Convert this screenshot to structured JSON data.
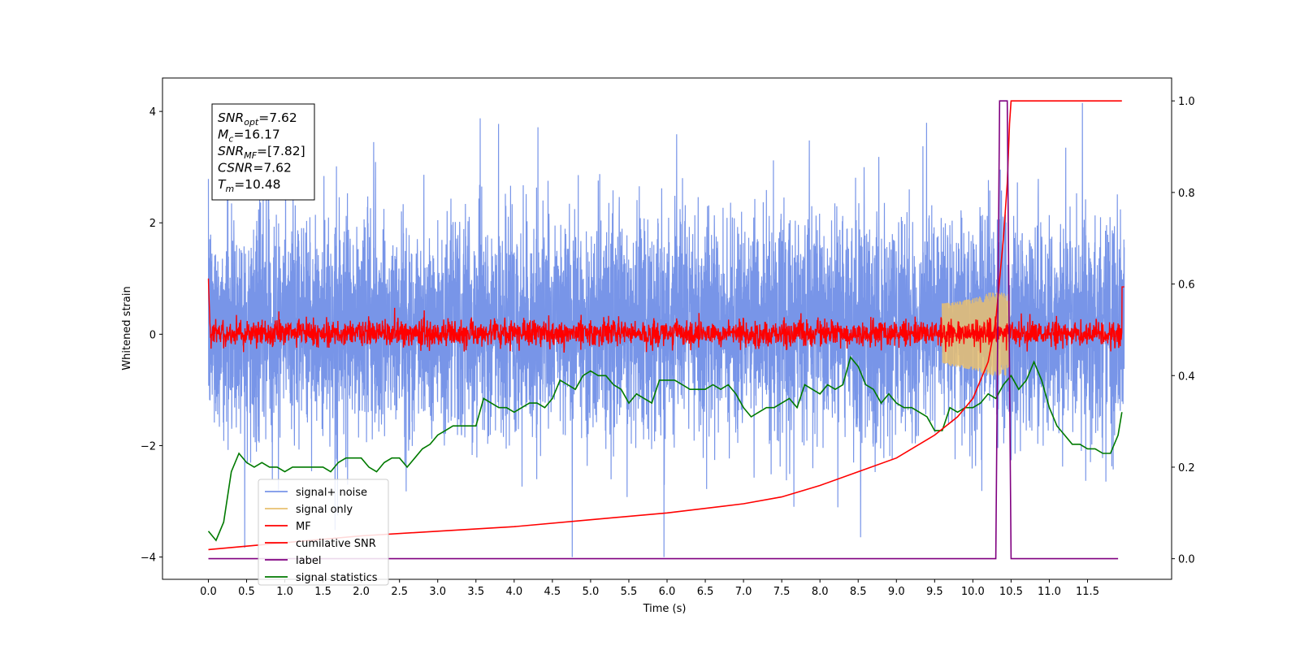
{
  "chart_data": {
    "type": "line",
    "xlabel": "Time (s)",
    "ylabel": "Whitened strain",
    "xlim": [
      -0.6,
      12.6
    ],
    "ylim": [
      -4.4,
      4.6
    ],
    "y2lim": [
      -0.045,
      1.05
    ],
    "x_ticks": [
      "0.0",
      "0.5",
      "1.0",
      "1.5",
      "2.0",
      "2.5",
      "3.0",
      "3.5",
      "4.0",
      "4.5",
      "5.0",
      "5.5",
      "6.0",
      "6.5",
      "7.0",
      "7.5",
      "8.0",
      "8.5",
      "9.0",
      "9.5",
      "10.0",
      "10.5",
      "11.0",
      "11.5"
    ],
    "y_ticks_left": [
      "4",
      "2",
      "0",
      "−2",
      "−4"
    ],
    "y_ticks_right": [
      "1.0",
      "0.8",
      "0.6",
      "0.4",
      "0.2",
      "0.0"
    ],
    "annotation": [
      {
        "base": "SNR",
        "sub": "opt",
        "value": "=7.62"
      },
      {
        "base": "M",
        "sub": "c",
        "value": "=16.17"
      },
      {
        "base": "SNR",
        "sub": "MF",
        "value": "=[7.82]"
      },
      {
        "base": "CSNR",
        "sub": "",
        "value": "=7.62"
      },
      {
        "base": "T",
        "sub": "m",
        "value": "=10.48"
      }
    ],
    "legend": {
      "placement": "lower left",
      "entries": [
        "signal+ noise",
        "signal only",
        "MF",
        "cumilative SNR",
        "label",
        "signal statistics"
      ]
    },
    "colors": {
      "signal_noise": "#7895e8",
      "signal_only": "#e8c070",
      "mf": "#ff0000",
      "cumulative_snr": "#ff0000",
      "label": "#800080",
      "signal_statistics": "#007a00"
    },
    "series": [
      {
        "name": "signal statistics",
        "axis": "right",
        "x": [
          0.0,
          0.1,
          0.2,
          0.3,
          0.4,
          0.5,
          0.6,
          0.7,
          0.8,
          0.9,
          1.0,
          1.1,
          1.2,
          1.3,
          1.4,
          1.5,
          1.6,
          1.7,
          1.8,
          1.9,
          2.0,
          2.1,
          2.2,
          2.3,
          2.4,
          2.5,
          2.6,
          2.7,
          2.8,
          2.9,
          3.0,
          3.1,
          3.2,
          3.3,
          3.4,
          3.5,
          3.6,
          3.7,
          3.8,
          3.9,
          4.0,
          4.1,
          4.2,
          4.3,
          4.4,
          4.5,
          4.6,
          4.7,
          4.8,
          4.9,
          5.0,
          5.1,
          5.2,
          5.3,
          5.4,
          5.5,
          5.6,
          5.7,
          5.8,
          5.9,
          6.0,
          6.1,
          6.2,
          6.3,
          6.4,
          6.5,
          6.6,
          6.7,
          6.8,
          6.9,
          7.0,
          7.1,
          7.2,
          7.3,
          7.4,
          7.5,
          7.6,
          7.7,
          7.8,
          7.9,
          8.0,
          8.1,
          8.2,
          8.3,
          8.4,
          8.5,
          8.6,
          8.7,
          8.8,
          8.9,
          9.0,
          9.1,
          9.2,
          9.3,
          9.4,
          9.5,
          9.6,
          9.7,
          9.8,
          9.9,
          10.0,
          10.1,
          10.2,
          10.3,
          10.4,
          10.5,
          10.6,
          10.7,
          10.8,
          10.9,
          11.0,
          11.1,
          11.2,
          11.3,
          11.4,
          11.5,
          11.6,
          11.7,
          11.8,
          11.9,
          11.95
        ],
        "values": [
          0.06,
          0.04,
          0.08,
          0.19,
          0.23,
          0.21,
          0.2,
          0.21,
          0.2,
          0.2,
          0.19,
          0.2,
          0.2,
          0.2,
          0.2,
          0.2,
          0.19,
          0.21,
          0.22,
          0.22,
          0.22,
          0.2,
          0.19,
          0.21,
          0.22,
          0.22,
          0.2,
          0.22,
          0.24,
          0.25,
          0.27,
          0.28,
          0.29,
          0.29,
          0.29,
          0.29,
          0.35,
          0.34,
          0.33,
          0.33,
          0.32,
          0.33,
          0.34,
          0.34,
          0.33,
          0.35,
          0.39,
          0.38,
          0.37,
          0.4,
          0.41,
          0.4,
          0.4,
          0.38,
          0.37,
          0.34,
          0.36,
          0.35,
          0.34,
          0.39,
          0.39,
          0.39,
          0.38,
          0.37,
          0.37,
          0.37,
          0.38,
          0.37,
          0.38,
          0.36,
          0.33,
          0.31,
          0.32,
          0.33,
          0.33,
          0.34,
          0.35,
          0.33,
          0.38,
          0.37,
          0.36,
          0.38,
          0.37,
          0.38,
          0.44,
          0.42,
          0.38,
          0.37,
          0.34,
          0.36,
          0.34,
          0.33,
          0.33,
          0.32,
          0.31,
          0.28,
          0.28,
          0.33,
          0.32,
          0.33,
          0.33,
          0.34,
          0.36,
          0.35,
          0.38,
          0.4,
          0.37,
          0.39,
          0.43,
          0.39,
          0.33,
          0.29,
          0.27,
          0.25,
          0.25,
          0.24,
          0.24,
          0.23,
          0.23,
          0.27,
          0.32
        ]
      },
      {
        "name": "cumilative SNR",
        "axis": "right",
        "x": [
          0.0,
          1.0,
          2.0,
          3.0,
          4.0,
          5.0,
          6.0,
          7.0,
          7.5,
          8.0,
          8.5,
          9.0,
          9.5,
          9.8,
          10.0,
          10.2,
          10.3,
          10.4,
          10.45,
          10.48,
          10.5,
          11.0,
          11.5,
          11.95
        ],
        "values": [
          0.02,
          0.035,
          0.05,
          0.06,
          0.07,
          0.085,
          0.1,
          0.12,
          0.135,
          0.16,
          0.19,
          0.22,
          0.27,
          0.31,
          0.35,
          0.43,
          0.52,
          0.7,
          0.82,
          0.95,
          1.0,
          1.0,
          1.0,
          1.0
        ]
      },
      {
        "name": "label",
        "axis": "right",
        "x": [
          0.0,
          10.3,
          10.35,
          10.45,
          10.5,
          11.9
        ],
        "values": [
          0.0,
          0.0,
          1.0,
          1.0,
          0.0,
          0.0
        ]
      }
    ]
  }
}
